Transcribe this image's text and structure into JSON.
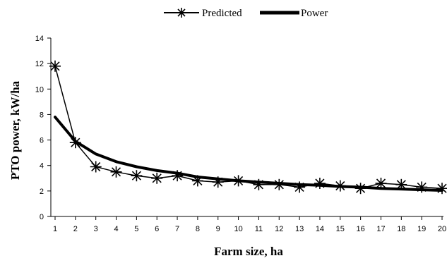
{
  "chart_data": {
    "type": "line",
    "title": "",
    "xlabel": "Farm size, ha",
    "ylabel": "PTO power, kW/ha",
    "categories": [
      "1",
      "2",
      "3",
      "4",
      "5",
      "6",
      "7",
      "8",
      "9",
      "10",
      "11",
      "12",
      "13",
      "14",
      "15",
      "16",
      "17",
      "18",
      "19",
      "20"
    ],
    "ylim": [
      0,
      14
    ],
    "yticks": [
      0,
      2,
      4,
      6,
      8,
      10,
      12,
      14
    ],
    "grid": false,
    "legend_position": "top-center",
    "series": [
      {
        "name": "Predicted",
        "color": "#000000",
        "marker": "asterisk",
        "values": [
          11.8,
          5.8,
          3.9,
          3.5,
          3.2,
          3.0,
          3.2,
          2.8,
          2.7,
          2.8,
          2.5,
          2.5,
          2.3,
          2.6,
          2.4,
          2.2,
          2.6,
          2.5,
          2.3,
          2.2
        ]
      },
      {
        "name": "Power",
        "color": "#000000",
        "marker": "none",
        "values": [
          7.8,
          5.9,
          4.9,
          4.3,
          3.9,
          3.6,
          3.4,
          3.1,
          2.95,
          2.8,
          2.7,
          2.6,
          2.5,
          2.45,
          2.35,
          2.3,
          2.2,
          2.15,
          2.1,
          2.05
        ]
      }
    ]
  }
}
